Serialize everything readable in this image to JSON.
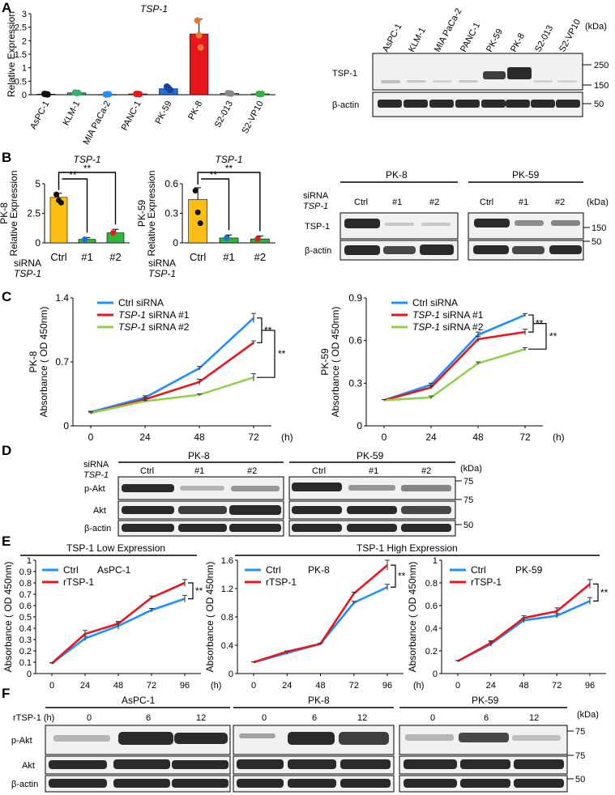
{
  "colors": {
    "blue": "#1e90ff",
    "red": "#e8171c",
    "green": "#8fd14f",
    "orange": "#f7b500",
    "yellow_bar": "#fbbf14",
    "green_bar": "#2fb53f",
    "band": "#2a2a2a"
  },
  "panel_labels": {
    "a": "A",
    "b": "B",
    "c": "C",
    "d": "D",
    "e": "E",
    "f": "F"
  },
  "panelA": {
    "title": "TSP-1",
    "ylabel": "Relative Expression",
    "lanes": [
      "AsPC-1",
      "KLM-1",
      "MIA PaCa-2",
      "PANC-1",
      "PK-59",
      "PK-8",
      "S2-013",
      "S2-VP10"
    ],
    "blot_rows": [
      "TSP-1",
      "β-actin"
    ],
    "kda_label": "(kDa)",
    "markers": [
      "250",
      "150",
      "50"
    ]
  },
  "panelB": {
    "siRNA_label": "siRNA",
    "tsp_label": "TSP-1",
    "ctrl": "Ctrl",
    "n1": "#1",
    "n2": "#2",
    "pk8_ylabel_line1": "PK-8",
    "pk59_ylabel_line1": "PK-59",
    "ylabel_line2": "Relative Expression",
    "sig": "**",
    "blot_groups": [
      "PK-8",
      "PK-59"
    ],
    "blot_lanes": [
      "Ctrl",
      "#1",
      "#2"
    ],
    "blot_rows": [
      "TSP-1",
      "β-actin"
    ],
    "kda_label": "(kDa)",
    "markers": [
      "150",
      "50"
    ]
  },
  "panelC": {
    "legend": [
      "Ctrl siRNA",
      "TSP-1 siRNA #1",
      "TSP-1 siRNA #2"
    ],
    "legend_prefix": "TSP-1",
    "legend_suffix1": " siRNA #1",
    "legend_suffix2": " siRNA #2",
    "ylabel_pk8": "PK-8",
    "ylabel_pk59": "PK-59",
    "ylabel": "Absorbance ( OD 450nm)",
    "x_unit": "(h)",
    "sig": "**"
  },
  "panelD": {
    "groups": [
      "PK-8",
      "PK-59"
    ],
    "lanes": [
      "Ctrl",
      "#1",
      "#2"
    ],
    "siRNA_label": "siRNA",
    "tsp_label": "TSP-1",
    "rows": [
      "p-Akt",
      "Akt",
      "β-actin"
    ],
    "kda_label": "(kDa)",
    "markers": [
      "75",
      "75",
      "50"
    ]
  },
  "panelE": {
    "group_low": "TSP-1 Low Expression",
    "group_high": "TSP-1 High Expression",
    "legend": [
      "Ctrl",
      "rTSP-1"
    ],
    "ylabel": "Absorbance ( OD 450nm)",
    "x_unit": "(h)",
    "sig": "**"
  },
  "panelF": {
    "treat_label": "rTSP-1 (h)",
    "groups": [
      "AsPC-1",
      "PK-8",
      "PK-59"
    ],
    "lanes": [
      "0",
      "6",
      "12"
    ],
    "rows": [
      "p-Akt",
      "Akt",
      "β-actin"
    ],
    "kda_label": "(kDa)",
    "markers": [
      "75",
      "75",
      "50"
    ]
  },
  "chart_data": [
    {
      "id": "A",
      "type": "bar",
      "title": "TSP-1",
      "ylabel": "Relative Expression",
      "categories": [
        "AsPC-1",
        "KLM-1",
        "MIA PaCa-2",
        "PANC-1",
        "PK-59",
        "PK-8",
        "S2-013",
        "S2-VP10"
      ],
      "values": [
        0.02,
        0.07,
        0.01,
        0.03,
        0.22,
        2.25,
        0.05,
        0.03
      ],
      "errors": [
        0.01,
        0.02,
        0.005,
        0.01,
        0.05,
        0.55,
        0.02,
        0.01
      ],
      "bar_colors": [
        "#222222",
        "#2fb53f",
        "#1e90ff",
        "#e8171c",
        "#1e6fd9",
        "#e8171c",
        "#999999",
        "#2fb53f"
      ],
      "points": [
        [
          0.03,
          0.02,
          0.01
        ],
        [
          0.08,
          0.06,
          0.07
        ],
        [
          0.01,
          0.01,
          0.02
        ],
        [
          0.03,
          0.03,
          0.02
        ],
        [
          0.3,
          0.25,
          0.18
        ],
        [
          2.75,
          2.2,
          1.75
        ],
        [
          0.06,
          0.05,
          0.04
        ],
        [
          0.03,
          0.02,
          0.03
        ]
      ],
      "point_colors": [
        "#111111",
        "#2db36c",
        "#1e90ff",
        "#e8171c",
        "#1e3f99",
        "#e07a3a",
        "#888888",
        "#2fb53f"
      ],
      "ylim": [
        0,
        3
      ],
      "yticks": [
        "0",
        "0.5",
        "1",
        "1.5",
        "2",
        "2.5",
        "3"
      ]
    },
    {
      "id": "B-PK8",
      "type": "bar",
      "title": "TSP-1",
      "ylabel": "PK-8 Relative Expression",
      "categories": [
        "Ctrl",
        "#1",
        "#2"
      ],
      "values": [
        3.85,
        0.3,
        0.85
      ],
      "errors": [
        0.35,
        0.15,
        0.3
      ],
      "bar_colors": [
        "#fbbf14",
        "#2fb53f",
        "#2fb53f"
      ],
      "points": [
        [
          4.1,
          3.6,
          3.4
        ],
        [
          0.3
        ],
        [
          0.85
        ]
      ],
      "point_colors": [
        "#111111",
        "#1e6fd9",
        "#e8171c"
      ],
      "ylim": [
        0,
        5
      ],
      "yticks": [
        "0",
        "2.5",
        "5"
      ],
      "significance": [
        "**",
        "**"
      ]
    },
    {
      "id": "B-PK59",
      "type": "bar",
      "title": "TSP-1",
      "ylabel": "PK-59 Relative Expression",
      "categories": [
        "Ctrl",
        "#1",
        "#2"
      ],
      "values": [
        0.44,
        0.05,
        0.04
      ],
      "errors": [
        0.12,
        0.03,
        0.03
      ],
      "bar_colors": [
        "#fbbf14",
        "#2fb53f",
        "#2fb53f"
      ],
      "points": [
        [
          0.53,
          0.31,
          0.2
        ],
        [
          0.05
        ],
        [
          0.04
        ]
      ],
      "point_colors": [
        "#111111",
        "#1e6fd9",
        "#e8171c"
      ],
      "ylim": [
        0,
        0.6
      ],
      "yticks": [
        "0",
        "0.3",
        "0.6"
      ],
      "significance": [
        "**",
        "**"
      ]
    },
    {
      "id": "C-PK8",
      "type": "line",
      "x": [
        0,
        24,
        48,
        72
      ],
      "xticks": [
        "0",
        "24",
        "48",
        "72"
      ],
      "ylim": [
        0,
        1.4
      ],
      "yticks": [
        "0",
        "0.7",
        "1.4"
      ],
      "series": [
        {
          "name": "Ctrl siRNA",
          "color": "#1e90ff",
          "values": [
            0.15,
            0.31,
            0.63,
            1.18
          ],
          "errors": [
            0.01,
            0.02,
            0.02,
            0.05
          ]
        },
        {
          "name": "TSP-1 siRNA #1",
          "color": "#e8171c",
          "values": [
            0.14,
            0.29,
            0.48,
            0.91
          ],
          "errors": [
            0.01,
            0.02,
            0.03,
            0.02
          ]
        },
        {
          "name": "TSP-1 siRNA #2",
          "color": "#8fd14f",
          "values": [
            0.14,
            0.27,
            0.34,
            0.53
          ],
          "errors": [
            0.01,
            0.01,
            0.01,
            0.04
          ]
        }
      ],
      "significance": [
        "**",
        "**"
      ]
    },
    {
      "id": "C-PK59",
      "type": "line",
      "x": [
        0,
        24,
        48,
        72
      ],
      "xticks": [
        "0",
        "24",
        "48",
        "72"
      ],
      "ylim": [
        0,
        0.9
      ],
      "yticks": [
        "0",
        "0.3",
        "0.6",
        "0.9"
      ],
      "series": [
        {
          "name": "Ctrl siRNA",
          "color": "#1e90ff",
          "values": [
            0.18,
            0.29,
            0.64,
            0.78
          ],
          "errors": [
            0.005,
            0.01,
            0.02,
            0.01
          ]
        },
        {
          "name": "TSP-1 siRNA #1",
          "color": "#e8171c",
          "values": [
            0.18,
            0.27,
            0.61,
            0.66
          ],
          "errors": [
            0.005,
            0.01,
            0.02,
            0.02
          ]
        },
        {
          "name": "TSP-1 siRNA #2",
          "color": "#8fd14f",
          "values": [
            0.18,
            0.2,
            0.44,
            0.54
          ],
          "errors": [
            0.005,
            0.01,
            0.01,
            0.01
          ]
        }
      ],
      "significance": [
        "**",
        "**"
      ]
    },
    {
      "id": "E-AsPC1",
      "type": "line",
      "title": "AsPC-1",
      "x": [
        0,
        24,
        48,
        72,
        96
      ],
      "xticks": [
        "0",
        "24",
        "48",
        "72",
        "96"
      ],
      "ylim": [
        0,
        1.0
      ],
      "yticks": [
        "0",
        "0.1",
        "0.2",
        "0.3",
        "0.4",
        "0.5",
        "0.6",
        "0.7",
        "0.8",
        "0.9",
        "1"
      ],
      "series": [
        {
          "name": "Ctrl",
          "color": "#1e90ff",
          "values": [
            0.09,
            0.31,
            0.42,
            0.56,
            0.66
          ],
          "errors": [
            0.005,
            0.02,
            0.03,
            0.015,
            0.03
          ]
        },
        {
          "name": "rTSP-1",
          "color": "#e8171c",
          "values": [
            0.09,
            0.35,
            0.44,
            0.67,
            0.8
          ],
          "errors": [
            0.005,
            0.03,
            0.02,
            0.015,
            0.03
          ]
        }
      ],
      "significance": [
        "**"
      ]
    },
    {
      "id": "E-PK8",
      "type": "line",
      "title": "PK-8",
      "x": [
        0,
        24,
        48,
        72,
        96
      ],
      "xticks": [
        "0",
        "24",
        "48",
        "72",
        "96"
      ],
      "ylim": [
        0,
        1.6
      ],
      "yticks": [
        "0",
        "0.4",
        "0.8",
        "1.2",
        "1.6"
      ],
      "series": [
        {
          "name": "Ctrl",
          "color": "#1e90ff",
          "values": [
            0.16,
            0.29,
            0.42,
            1.0,
            1.22
          ],
          "errors": [
            0.005,
            0.02,
            0.01,
            0.02,
            0.04
          ]
        },
        {
          "name": "rTSP-1",
          "color": "#e8171c",
          "values": [
            0.16,
            0.31,
            0.42,
            1.13,
            1.53
          ],
          "errors": [
            0.005,
            0.01,
            0.01,
            0.02,
            0.07
          ]
        }
      ],
      "significance": [
        "**"
      ]
    },
    {
      "id": "E-PK59",
      "type": "line",
      "title": "PK-59",
      "x": [
        0,
        24,
        48,
        72,
        96
      ],
      "xticks": [
        "0",
        "24",
        "48",
        "72",
        "96"
      ],
      "ylim": [
        0,
        1.0
      ],
      "yticks": [
        "0",
        "0.2",
        "0.4",
        "0.6",
        "0.8",
        "1"
      ],
      "series": [
        {
          "name": "Ctrl",
          "color": "#1e90ff",
          "values": [
            0.11,
            0.26,
            0.47,
            0.51,
            0.64
          ],
          "errors": [
            0.005,
            0.02,
            0.02,
            0.02,
            0.03
          ]
        },
        {
          "name": "rTSP-1",
          "color": "#e8171c",
          "values": [
            0.11,
            0.27,
            0.49,
            0.55,
            0.79
          ],
          "errors": [
            0.005,
            0.02,
            0.02,
            0.03,
            0.04
          ]
        }
      ],
      "significance": [
        "**"
      ]
    }
  ]
}
